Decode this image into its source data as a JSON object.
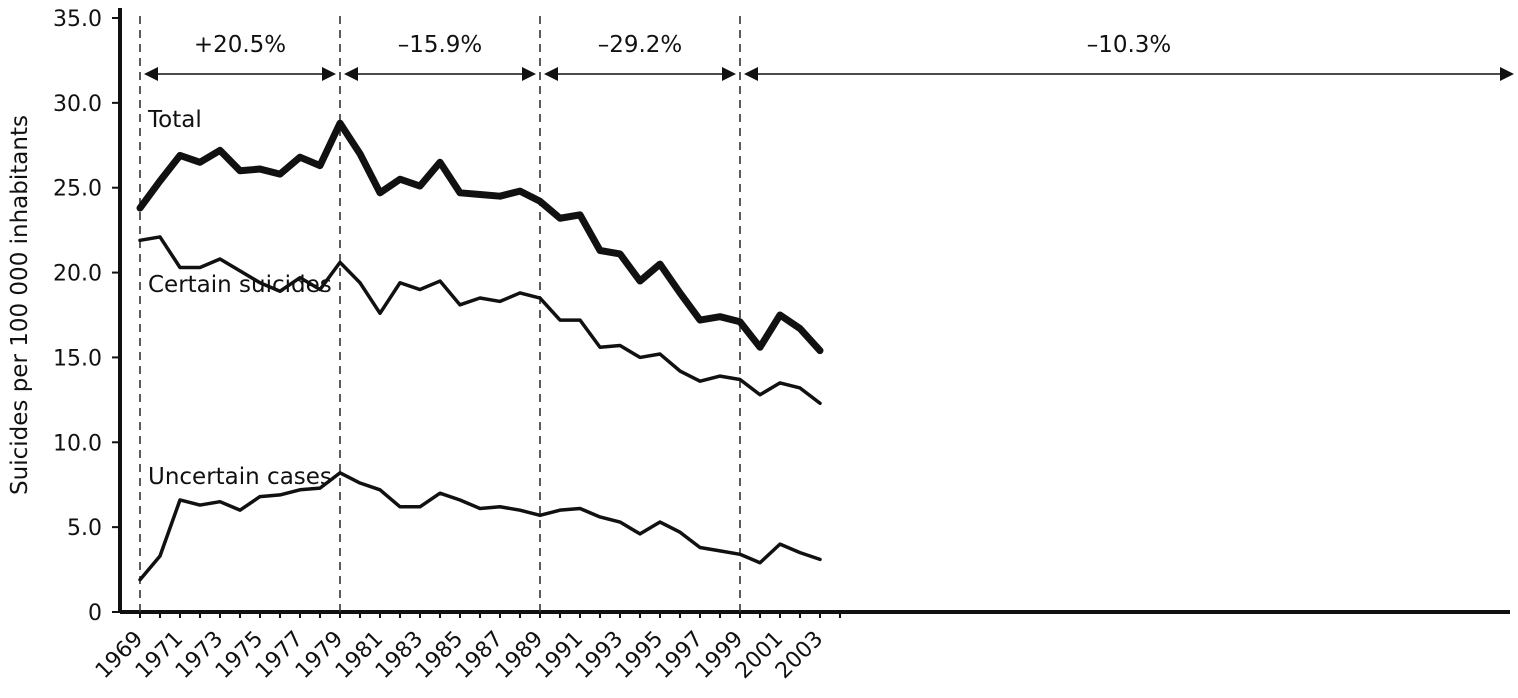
{
  "chart_data": {
    "type": "line",
    "ylabel": "Suicides per 100 000 inhabitants",
    "xlabel": "",
    "ylim": [
      0,
      35
    ],
    "yticks": [
      {
        "value": 0,
        "label": "0"
      },
      {
        "value": 5,
        "label": "5.0"
      },
      {
        "value": 10,
        "label": "10.0"
      },
      {
        "value": 15,
        "label": "15.0"
      },
      {
        "value": 20,
        "label": "20.0"
      },
      {
        "value": 25,
        "label": "25.0"
      },
      {
        "value": 30,
        "label": "30.0"
      },
      {
        "value": 35,
        "label": "35.0"
      }
    ],
    "xlim": [
      1969,
      2004
    ],
    "xtick_labels": [
      "1969",
      "1971",
      "1973",
      "1975",
      "1977",
      "1979",
      "1981",
      "1983",
      "1985",
      "1987",
      "1989",
      "1991",
      "1993",
      "1995",
      "1997",
      "1999",
      "2001",
      "2003"
    ],
    "x": [
      1969,
      1970,
      1971,
      1972,
      1973,
      1974,
      1975,
      1976,
      1977,
      1978,
      1979,
      1980,
      1981,
      1982,
      1983,
      1984,
      1985,
      1986,
      1987,
      1988,
      1989,
      1990,
      1991,
      1992,
      1993,
      1994,
      1995,
      1996,
      1997,
      1998,
      1999,
      2000,
      2001,
      2002,
      2003,
      2004
    ],
    "series": [
      {
        "name": "Total",
        "style": "thick",
        "values": [
          23.8,
          25.4,
          26.9,
          26.5,
          27.2,
          26.0,
          26.1,
          25.8,
          26.8,
          26.3,
          28.8,
          27.0,
          24.7,
          25.5,
          25.1,
          26.5,
          24.7,
          24.6,
          24.5,
          24.8,
          24.2,
          23.2,
          23.4,
          21.3,
          21.1,
          19.5,
          20.5,
          18.8,
          17.2,
          17.4,
          17.1,
          15.6,
          17.5,
          16.7,
          15.4,
          null
        ]
      },
      {
        "name": "Certain suicides",
        "style": "normal",
        "values": [
          21.9,
          22.1,
          20.3,
          20.3,
          20.8,
          20.1,
          19.4,
          18.9,
          19.7,
          19.0,
          20.6,
          19.4,
          17.6,
          19.4,
          19.0,
          19.5,
          18.1,
          18.5,
          18.3,
          18.8,
          18.5,
          17.2,
          17.2,
          15.6,
          15.7,
          15.0,
          15.2,
          14.2,
          13.6,
          13.9,
          13.7,
          12.8,
          13.5,
          13.2,
          12.3,
          null
        ]
      },
      {
        "name": "Uncertain cases",
        "style": "normal",
        "values": [
          1.9,
          3.3,
          6.6,
          6.3,
          6.5,
          6.0,
          6.8,
          6.9,
          7.2,
          7.3,
          8.2,
          7.6,
          7.2,
          6.2,
          6.2,
          7.0,
          6.6,
          6.1,
          6.2,
          6.0,
          5.7,
          6.0,
          6.1,
          5.6,
          5.3,
          4.6,
          5.3,
          4.7,
          3.8,
          3.6,
          3.4,
          2.9,
          4.0,
          3.5,
          3.1,
          null
        ]
      }
    ],
    "period_markers": [
      1969,
      1979,
      1989,
      1999
    ],
    "periods": [
      {
        "from": 1969,
        "to": 1979,
        "label": "+20.5%"
      },
      {
        "from": 1979,
        "to": 1989,
        "label": "–15.9%"
      },
      {
        "from": 1989,
        "to": 1999,
        "label": "–29.2%"
      },
      {
        "from": 1999,
        "to": 2003,
        "label": "–10.3%"
      }
    ],
    "legend": "inline-labels",
    "grid": false
  }
}
